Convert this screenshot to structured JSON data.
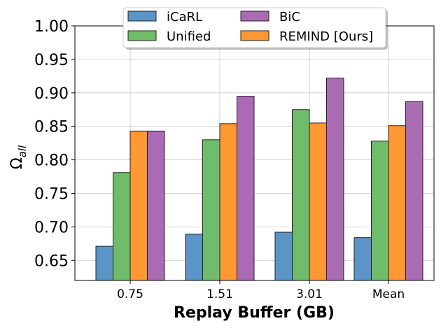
{
  "chart_data": {
    "type": "bar",
    "title": "",
    "xlabel": "Replay Buffer (GB)",
    "ylabel": "Ω",
    "ylabel_sub": "all",
    "categories": [
      "0.75",
      "1.51",
      "3.01",
      "Mean"
    ],
    "ylim": [
      0.62,
      1.0
    ],
    "yticks": [
      "0.65",
      "0.70",
      "0.75",
      "0.80",
      "0.85",
      "0.90",
      "0.95",
      "1.00"
    ],
    "ytick_values": [
      0.65,
      0.7,
      0.75,
      0.8,
      0.85,
      0.9,
      0.95,
      1.0
    ],
    "grid": true,
    "legend_position": "top-center",
    "series": [
      {
        "name": "iCaRL",
        "color": "#5b95c7",
        "values": [
          0.671,
          0.689,
          0.692,
          0.684
        ]
      },
      {
        "name": "Unified",
        "color": "#6fbd6a",
        "values": [
          0.781,
          0.83,
          0.875,
          0.828
        ]
      },
      {
        "name": "REMIND [Ours]",
        "color": "#ff9733",
        "values": [
          0.843,
          0.854,
          0.855,
          0.851
        ]
      },
      {
        "name": "BiC",
        "color": "#ab6bb4",
        "values": [
          0.843,
          0.895,
          0.922,
          0.887
        ]
      }
    ],
    "legend_order": [
      0,
      3,
      1,
      2
    ]
  }
}
